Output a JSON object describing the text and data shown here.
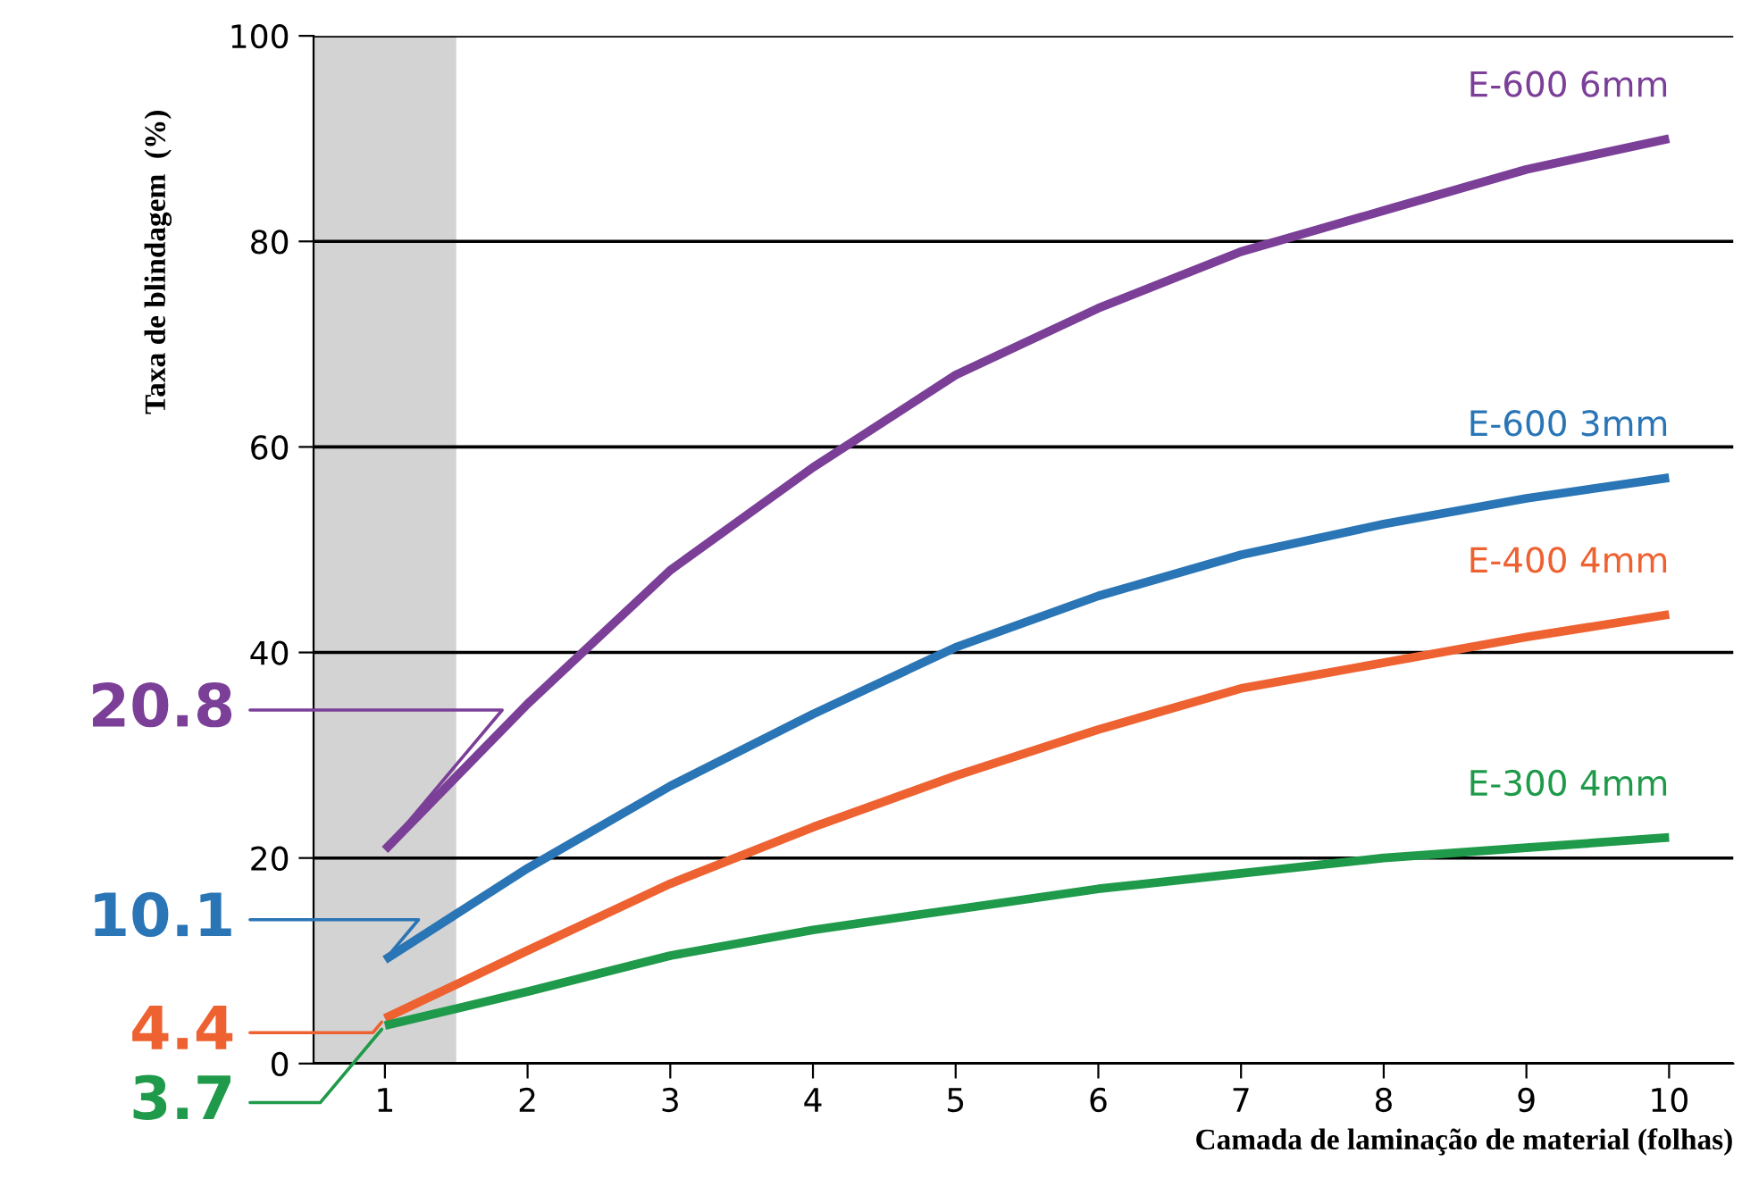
{
  "chart_data": {
    "type": "line",
    "xlabel": "Camada de laminação de material (folhas)",
    "ylabel": "Taxa de blindagem  (%)",
    "x": [
      1,
      2,
      3,
      4,
      5,
      6,
      7,
      8,
      9,
      10
    ],
    "series": [
      {
        "name": "E-600 6mm",
        "color": "#7b3f98",
        "values": [
          20.8,
          35,
          48,
          58,
          67,
          73.5,
          79,
          83,
          87,
          90
        ],
        "value_labels": [
          "20.8",
          null,
          null,
          null,
          null,
          null,
          null,
          null,
          null,
          null
        ]
      },
      {
        "name": "E-600 3mm",
        "color": "#2a75b5",
        "values": [
          10.1,
          19,
          27,
          34,
          40.5,
          45.5,
          49.5,
          52.5,
          55,
          57
        ],
        "value_labels": [
          "10.1",
          null,
          null,
          null,
          null,
          null,
          null,
          null,
          null,
          null
        ]
      },
      {
        "name": "E-400 4mm",
        "color": "#ee6130",
        "values": [
          4.4,
          11,
          17.5,
          23,
          28,
          32.5,
          36.5,
          39,
          41.5,
          43.7
        ],
        "value_labels": [
          "4.4",
          null,
          null,
          null,
          null,
          null,
          null,
          null,
          null,
          null
        ]
      },
      {
        "name": "E-300 4mm",
        "color": "#1f9a4a",
        "values": [
          3.7,
          7,
          10.5,
          13,
          15,
          17,
          18.5,
          20,
          21,
          22
        ],
        "value_labels": [
          "3.7",
          null,
          null,
          null,
          null,
          null,
          null,
          null,
          null,
          null
        ]
      }
    ],
    "xlim": [
      0.5,
      10.45
    ],
    "ylim": [
      0,
      100
    ],
    "xticks": [
      1,
      2,
      3,
      4,
      5,
      6,
      7,
      8,
      9,
      10
    ],
    "yticks": [
      0,
      20,
      40,
      60,
      80,
      100
    ],
    "grid": "y",
    "legend": false,
    "marker": "none",
    "line_style": "solid",
    "bands": [
      {
        "axis": "x",
        "from": 0.5,
        "to": 1.5,
        "color": "#d3d3d3"
      }
    ]
  }
}
